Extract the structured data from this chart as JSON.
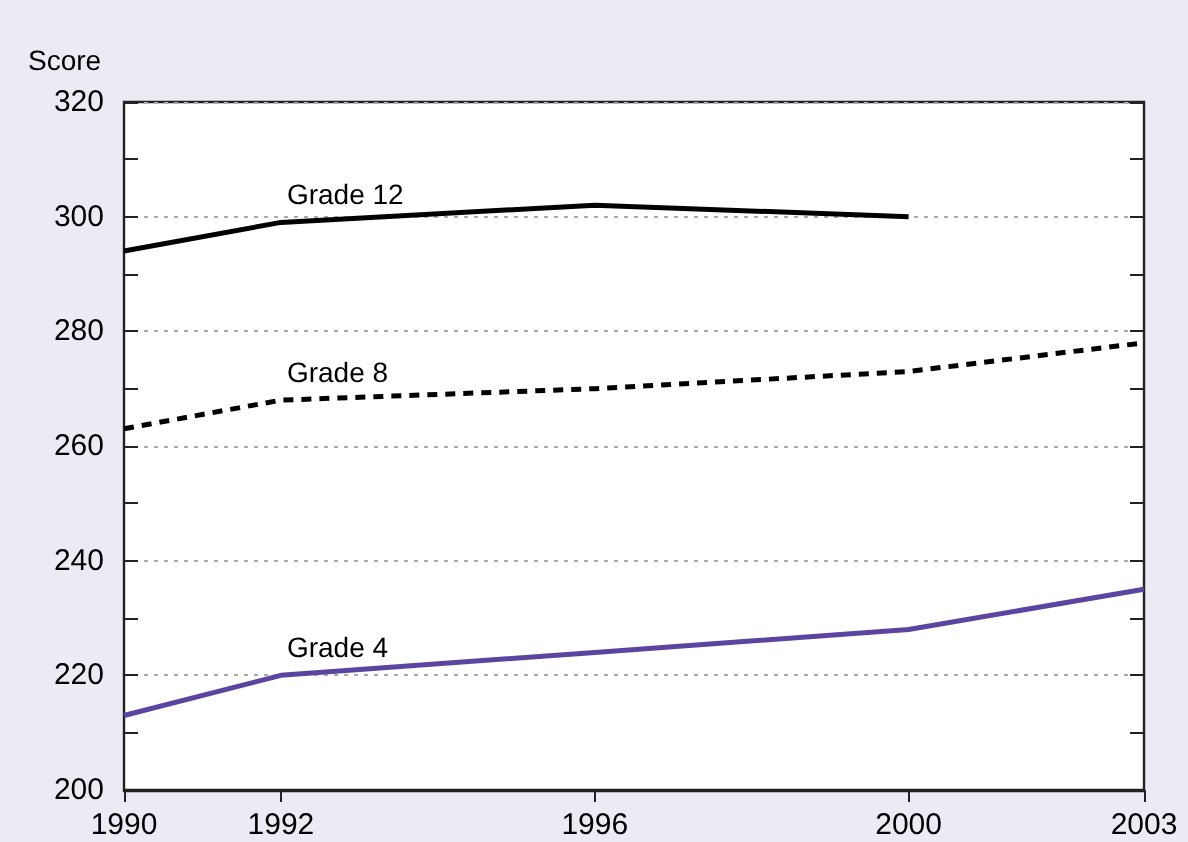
{
  "chart_data": {
    "type": "line",
    "ylabel": "Score",
    "x": [
      1990,
      1992,
      1996,
      2000,
      2003
    ],
    "series": [
      {
        "name": "Grade 12",
        "color": "#000000",
        "values": [
          294,
          299,
          302,
          300,
          null
        ]
      },
      {
        "name": "Grade 8",
        "color": "#000000",
        "line_style": "dashed",
        "values": [
          263,
          268,
          270,
          273,
          278
        ]
      },
      {
        "name": "Grade 4",
        "color": "#5b45a0",
        "values": [
          213,
          220,
          224,
          228,
          235
        ]
      }
    ],
    "xlim": [
      1990,
      2003
    ],
    "xticks": [
      1990,
      1992,
      1996,
      2000,
      2003
    ],
    "ylim": [
      200,
      320
    ],
    "yticks": [
      200,
      {
        "value": 210,
        "label": null
      },
      220,
      {
        "value": 230,
        "label": null
      },
      240,
      {
        "value": 250,
        "label": null
      },
      260,
      {
        "value": 270,
        "label": null
      },
      280,
      {
        "value": 290,
        "label": null
      },
      300,
      {
        "value": 310,
        "label": null
      },
      320
    ],
    "grid": "y",
    "legend": false,
    "marker": "none",
    "line_style": "solid"
  }
}
